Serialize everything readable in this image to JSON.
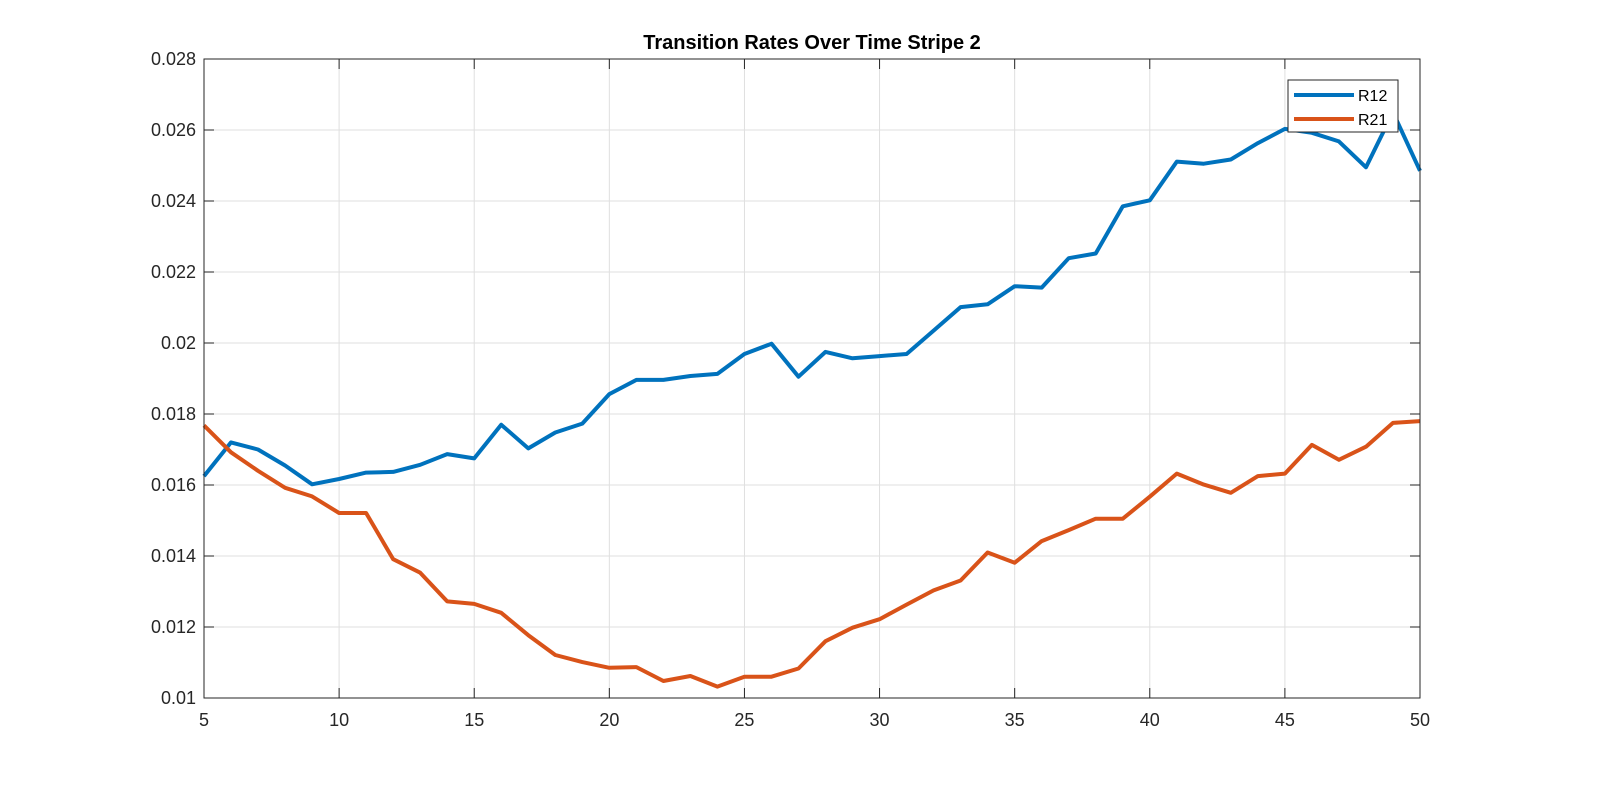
{
  "chart_data": {
    "type": "line",
    "title": "Transition Rates Over Time Stripe 2",
    "xlabel": "",
    "ylabel": "",
    "xlim": [
      5,
      50
    ],
    "ylim": [
      0.01,
      0.028
    ],
    "xticks": [
      5,
      10,
      15,
      20,
      25,
      30,
      35,
      40,
      45,
      50
    ],
    "xtick_labels": [
      "5",
      "10",
      "15",
      "20",
      "25",
      "30",
      "35",
      "40",
      "45",
      "50"
    ],
    "yticks": [
      0.01,
      0.012,
      0.014,
      0.016,
      0.018,
      0.02,
      0.022,
      0.024,
      0.026,
      0.028
    ],
    "ytick_labels": [
      "0.01",
      "0.012",
      "0.014",
      "0.016",
      "0.018",
      "0.02",
      "0.022",
      "0.024",
      "0.026",
      "0.028"
    ],
    "grid": true,
    "legend_position": "top-right",
    "x": [
      5,
      6,
      7,
      8,
      9,
      10,
      11,
      12,
      13,
      14,
      15,
      16,
      17,
      18,
      19,
      20,
      21,
      22,
      23,
      24,
      25,
      26,
      27,
      28,
      29,
      30,
      31,
      32,
      33,
      34,
      35,
      36,
      37,
      38,
      39,
      40,
      41,
      42,
      43,
      44,
      45,
      46,
      47,
      48,
      49,
      50
    ],
    "series": [
      {
        "name": "R12",
        "color": "#0072BD",
        "values": [
          0.01625,
          0.0172,
          0.017,
          0.01655,
          0.01602,
          0.01617,
          0.01635,
          0.01637,
          0.01657,
          0.01687,
          0.01675,
          0.0177,
          0.01703,
          0.01748,
          0.01773,
          0.01856,
          0.01896,
          0.01896,
          0.01907,
          0.01913,
          0.01969,
          0.01998,
          0.01905,
          0.01975,
          0.01957,
          0.01963,
          0.01969,
          0.02035,
          0.02101,
          0.02109,
          0.0216,
          0.02156,
          0.02239,
          0.02252,
          0.02385,
          0.02402,
          0.02511,
          0.02505,
          0.02517,
          0.02563,
          0.02603,
          0.02592,
          0.02568,
          0.02495,
          0.0265,
          0.02485
        ]
      },
      {
        "name": "R21",
        "color": "#D95319",
        "values": [
          0.01768,
          0.01692,
          0.0164,
          0.01592,
          0.01568,
          0.01521,
          0.01521,
          0.01391,
          0.01353,
          0.01272,
          0.01265,
          0.0124,
          0.01177,
          0.01121,
          0.01101,
          0.01085,
          0.01087,
          0.01048,
          0.01062,
          0.01032,
          0.0106,
          0.0106,
          0.01083,
          0.0116,
          0.01198,
          0.01222,
          0.01263,
          0.01303,
          0.01331,
          0.0141,
          0.01381,
          0.01442,
          0.01473,
          0.01505,
          0.01505,
          0.01567,
          0.01632,
          0.01601,
          0.01578,
          0.01625,
          0.01632,
          0.01713,
          0.01671,
          0.01708,
          0.01775,
          0.0178
        ]
      }
    ]
  }
}
